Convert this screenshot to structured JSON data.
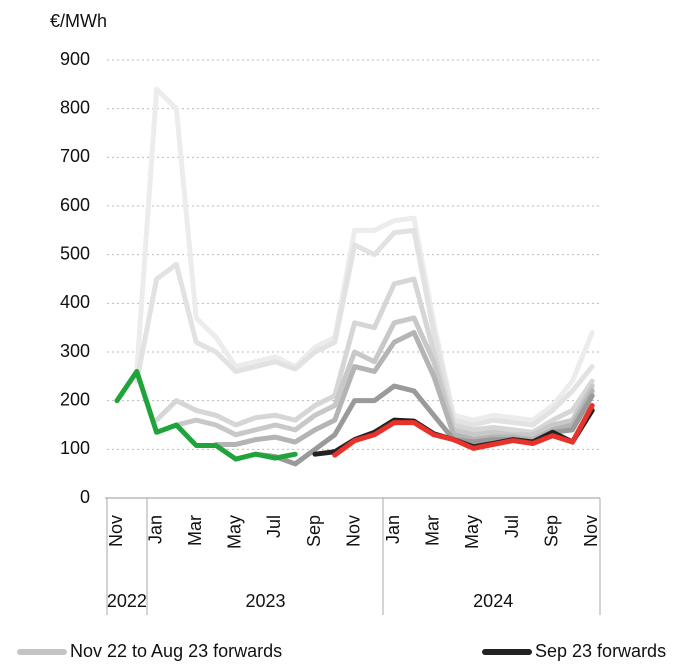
{
  "chart_data": {
    "type": "line",
    "y_unit_label": "€/MWh",
    "categories": [
      "Nov",
      null,
      "Jan",
      null,
      "Mar",
      null,
      "May",
      null,
      "Jul",
      null,
      "Sep",
      null,
      "Nov",
      null,
      "Jan",
      null,
      "Mar",
      null,
      "May",
      null,
      "Jul",
      null,
      "Sep",
      null,
      "Nov"
    ],
    "year_groups": [
      {
        "label": "2022",
        "from": 0,
        "to": 1
      },
      {
        "label": "2023",
        "from": 2,
        "to": 13
      },
      {
        "label": "2024",
        "from": 14,
        "to": 24
      }
    ],
    "ylim": [
      0,
      900
    ],
    "yticks": [
      0,
      100,
      200,
      300,
      400,
      500,
      600,
      700,
      800,
      900
    ],
    "grid": true,
    "series": [
      {
        "name": "Nov 22 to Aug 23 forwards",
        "color": "#ececec",
        "values": [
          null,
          260,
          840,
          800,
          370,
          330,
          270,
          280,
          290,
          270,
          310,
          330,
          550,
          550,
          570,
          575,
          360,
          170,
          160,
          170,
          165,
          160,
          190,
          240,
          340
        ]
      },
      {
        "color": "#e2e2e2",
        "values": [
          null,
          240,
          450,
          480,
          320,
          300,
          260,
          270,
          280,
          265,
          300,
          320,
          520,
          500,
          545,
          550,
          340,
          160,
          150,
          160,
          155,
          150,
          180,
          220,
          270
        ]
      },
      {
        "color": "#d6d6d6",
        "values": [
          null,
          null,
          160,
          200,
          180,
          170,
          150,
          165,
          170,
          160,
          190,
          210,
          360,
          350,
          440,
          450,
          300,
          150,
          140,
          145,
          140,
          135,
          160,
          180,
          240
        ]
      },
      {
        "color": "#c8c8c8",
        "values": [
          null,
          null,
          null,
          150,
          160,
          150,
          130,
          140,
          150,
          140,
          170,
          190,
          300,
          280,
          360,
          370,
          280,
          140,
          130,
          135,
          130,
          130,
          150,
          160,
          230
        ]
      },
      {
        "color": "#b4b4b4",
        "values": [
          null,
          null,
          null,
          null,
          null,
          110,
          110,
          120,
          125,
          115,
          140,
          160,
          270,
          260,
          320,
          340,
          250,
          130,
          120,
          125,
          125,
          120,
          140,
          150,
          220
        ]
      },
      {
        "color": "#9a9a9a",
        "values": [
          null,
          null,
          null,
          null,
          null,
          null,
          null,
          90,
          85,
          70,
          100,
          130,
          200,
          200,
          230,
          220,
          170,
          120,
          115,
          120,
          120,
          115,
          135,
          140,
          210
        ]
      },
      {
        "color": "#1fa33a",
        "values": [
          200,
          260,
          135,
          150,
          108,
          108,
          80,
          90,
          82,
          90,
          null,
          null,
          null,
          null,
          null,
          null,
          null,
          null,
          null,
          null,
          null,
          null,
          null,
          null,
          null
        ]
      },
      {
        "name": "Sep 23 forwards",
        "color": "#222222",
        "values": [
          null,
          null,
          null,
          null,
          null,
          null,
          null,
          null,
          null,
          null,
          90,
          95,
          120,
          135,
          160,
          158,
          132,
          120,
          105,
          112,
          120,
          115,
          135,
          115,
          180
        ]
      },
      {
        "color": "#e8322b",
        "values": [
          null,
          null,
          null,
          null,
          null,
          null,
          null,
          null,
          null,
          null,
          null,
          88,
          118,
          130,
          155,
          155,
          130,
          120,
          102,
          110,
          118,
          112,
          128,
          115,
          190
        ]
      }
    ]
  }
}
